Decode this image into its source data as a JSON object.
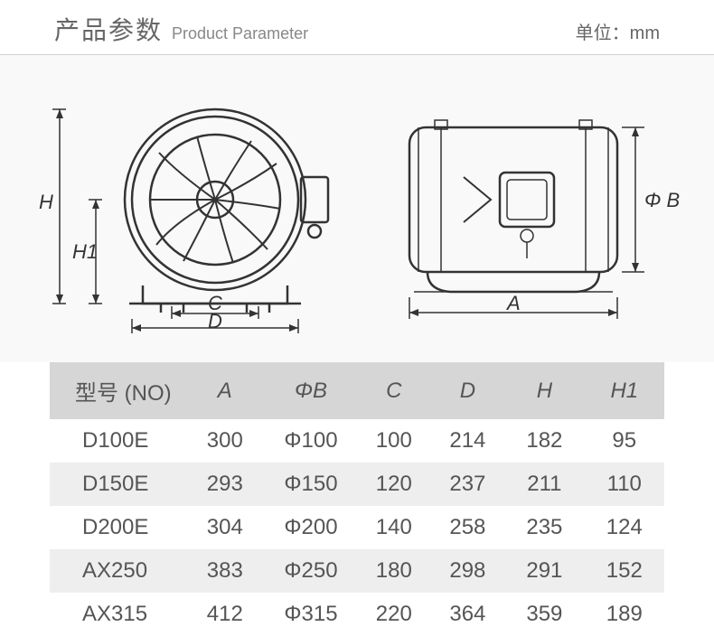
{
  "header": {
    "title_cn": "产品参数",
    "title_en": "Product Parameter",
    "unit_label": "单位：mm"
  },
  "diagram": {
    "front": {
      "H": "H",
      "H1": "H1",
      "C": "C",
      "D": "D"
    },
    "side": {
      "A": "A",
      "phiB": "Φ B"
    }
  },
  "table": {
    "columns": [
      "型号 (NO)",
      "A",
      "ΦB",
      "C",
      "D",
      "H",
      "H1"
    ],
    "col_widths": [
      "22%",
      "13%",
      "15%",
      "12%",
      "12%",
      "13%",
      "13%"
    ],
    "header_bg": "#d6d6d6",
    "row_alt_bg": "#eeeeee",
    "rows": [
      [
        "D100E",
        "300",
        "Φ100",
        "100",
        "214",
        "182",
        "95"
      ],
      [
        "D150E",
        "293",
        "Φ150",
        "120",
        "237",
        "211",
        "110"
      ],
      [
        "D200E",
        "304",
        "Φ200",
        "140",
        "258",
        "235",
        "124"
      ],
      [
        "AX250",
        "383",
        "Φ250",
        "180",
        "298",
        "291",
        "152"
      ],
      [
        "AX315",
        "412",
        "Φ315",
        "220",
        "364",
        "359",
        "189"
      ]
    ]
  },
  "colors": {
    "text": "#555555",
    "line": "#333333",
    "bg": "#ffffff",
    "diagram_bg": "#f9f9f9"
  }
}
